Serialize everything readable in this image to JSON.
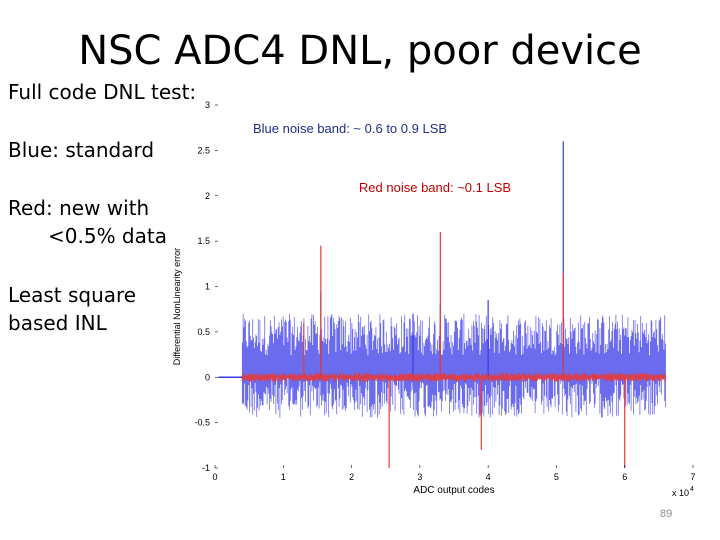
{
  "slide": {
    "title": "NSC ADC4 DNL, poor device",
    "left_text": [
      "Full code DNL test:",
      "Blue: standard",
      "Red: new with",
      "<0.5% data",
      "Least square",
      "based INL"
    ],
    "page_number": "89"
  },
  "chart_data": {
    "type": "line",
    "xlabel": "ADC output codes",
    "ylabel": "Differential NonLinearity error",
    "x_multiplier_label": "x 10",
    "x_multiplier_exp": "4",
    "xlim": [
      0,
      7
    ],
    "ylim": [
      -1,
      3
    ],
    "x_ticks": [
      "0",
      "1",
      "2",
      "3",
      "4",
      "5",
      "6",
      "7"
    ],
    "y_ticks": [
      "-1",
      "-0.5",
      "0",
      "0.5",
      "1",
      "1.5",
      "2",
      "2.5",
      "3"
    ],
    "annotations": [
      {
        "text": "Blue noise band: ~ 0.6 to 0.9 LSB",
        "color": "#1f2f8a"
      },
      {
        "text": "Red noise band: ~0.1 LSB",
        "color": "#c00000"
      }
    ],
    "series": [
      {
        "color": "#3a3ae8",
        "x_range": [
          0.4,
          6.6
        ],
        "band_low": -0.45,
        "band_high": 0.7,
        "spikes": [
          {
            "x": 5.1,
            "y": 2.6
          },
          {
            "x": 1.55,
            "y": 0.95
          },
          {
            "x": 4.0,
            "y": 0.85
          },
          {
            "x": 3.3,
            "y": 0.8
          },
          {
            "x": 2.9,
            "y": 0.7
          }
        ]
      },
      {
        "color": "#e83a3a",
        "x_range": [
          0.4,
          6.6
        ],
        "band_low": -0.05,
        "band_high": 0.05,
        "spikes": [
          {
            "x": 1.55,
            "y": 1.45
          },
          {
            "x": 3.3,
            "y": 1.6
          },
          {
            "x": 5.1,
            "y": 1.15
          },
          {
            "x": 1.3,
            "y": 0.6
          },
          {
            "x": 2.55,
            "y": -1.0
          },
          {
            "x": 3.9,
            "y": -0.8
          },
          {
            "x": 6.0,
            "y": -1.0
          }
        ]
      }
    ]
  }
}
